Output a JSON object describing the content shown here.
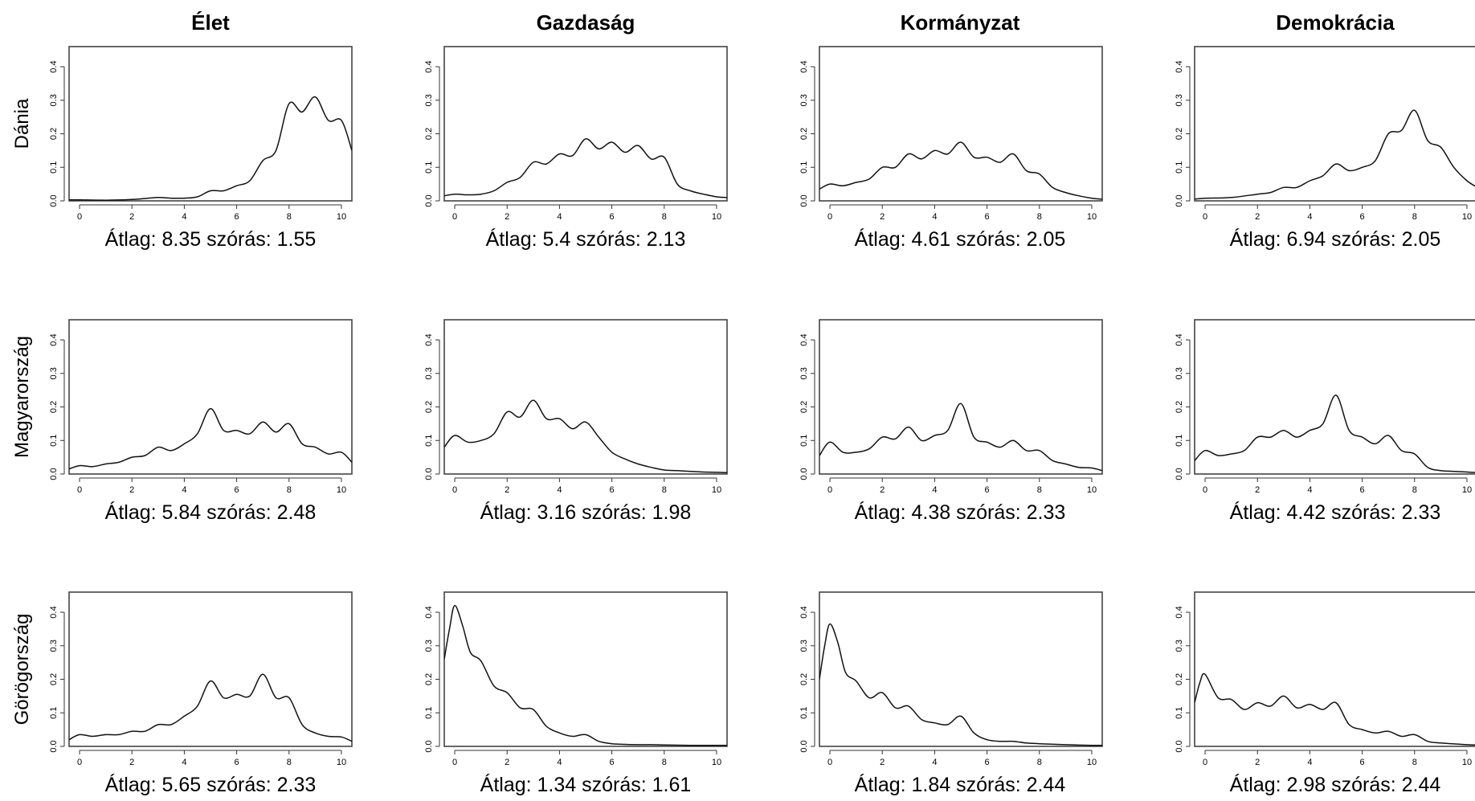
{
  "layout": {
    "columns": [
      "Élet",
      "Gazdaság",
      "Kormányzat",
      "Demokrácia"
    ],
    "rows": [
      "Dánia",
      "Magyarország",
      "Görögország"
    ]
  },
  "chart_data": [
    {
      "type": "line",
      "row": "Dánia",
      "column": "Élet",
      "caption": "Átlag: 8.35 szórás: 1.55",
      "xlim": [
        -0.4,
        10.4
      ],
      "ylim": [
        0,
        0.46
      ],
      "xticks": [
        "0",
        "2",
        "4",
        "6",
        "8",
        "10"
      ],
      "yticks": [
        "0.0",
        "0.1",
        "0.2",
        "0.3",
        "0.4"
      ],
      "x": [
        -0.4,
        0,
        1,
        2,
        2.5,
        3,
        3.5,
        4,
        4.5,
        5,
        5.5,
        6,
        6.5,
        7,
        7.5,
        8,
        8.5,
        9,
        9.5,
        10,
        10.4
      ],
      "y": [
        0.003,
        0.003,
        0.002,
        0.004,
        0.007,
        0.01,
        0.008,
        0.008,
        0.012,
        0.03,
        0.03,
        0.045,
        0.06,
        0.12,
        0.15,
        0.29,
        0.265,
        0.31,
        0.24,
        0.24,
        0.15
      ]
    },
    {
      "type": "line",
      "row": "Dánia",
      "column": "Gazdaság",
      "caption": "Átlag: 5.4 szórás: 2.13",
      "xlim": [
        -0.4,
        10.4
      ],
      "ylim": [
        0,
        0.46
      ],
      "xticks": [
        "0",
        "2",
        "4",
        "6",
        "8",
        "10"
      ],
      "yticks": [
        "0.0",
        "0.1",
        "0.2",
        "0.3",
        "0.4"
      ],
      "x": [
        -0.4,
        0,
        0.5,
        1,
        1.5,
        2,
        2.5,
        3,
        3.5,
        4,
        4.5,
        5,
        5.5,
        6,
        6.5,
        7,
        7.5,
        8,
        8.5,
        9,
        9.5,
        10,
        10.4
      ],
      "y": [
        0.015,
        0.02,
        0.018,
        0.02,
        0.03,
        0.055,
        0.07,
        0.115,
        0.11,
        0.14,
        0.135,
        0.185,
        0.155,
        0.175,
        0.145,
        0.165,
        0.125,
        0.13,
        0.05,
        0.03,
        0.02,
        0.012,
        0.01
      ]
    },
    {
      "type": "line",
      "row": "Dánia",
      "column": "Kormányzat",
      "caption": "Átlag: 4.61 szórás: 2.05",
      "xlim": [
        -0.4,
        10.4
      ],
      "ylim": [
        0,
        0.46
      ],
      "xticks": [
        "0",
        "2",
        "4",
        "6",
        "8",
        "10"
      ],
      "yticks": [
        "0.0",
        "0.1",
        "0.2",
        "0.3",
        "0.4"
      ],
      "x": [
        -0.4,
        0,
        0.5,
        1,
        1.5,
        2,
        2.5,
        3,
        3.5,
        4,
        4.5,
        5,
        5.5,
        6,
        6.5,
        7,
        7.5,
        8,
        8.5,
        9,
        9.5,
        10,
        10.4
      ],
      "y": [
        0.035,
        0.05,
        0.045,
        0.055,
        0.065,
        0.1,
        0.1,
        0.14,
        0.125,
        0.15,
        0.14,
        0.175,
        0.13,
        0.13,
        0.115,
        0.14,
        0.09,
        0.08,
        0.04,
        0.025,
        0.015,
        0.008,
        0.005
      ]
    },
    {
      "type": "line",
      "row": "Dánia",
      "column": "Demokrácia",
      "caption": "Átlag: 6.94 szórás: 2.05",
      "xlim": [
        -0.4,
        10.4
      ],
      "ylim": [
        0,
        0.46
      ],
      "xticks": [
        "0",
        "2",
        "4",
        "6",
        "8",
        "10"
      ],
      "yticks": [
        "0.0",
        "0.1",
        "0.2",
        "0.3",
        "0.4"
      ],
      "x": [
        -0.4,
        0,
        1,
        2,
        2.5,
        3,
        3.5,
        4,
        4.5,
        5,
        5.5,
        6,
        6.5,
        7,
        7.5,
        8,
        8.5,
        9,
        9.5,
        10,
        10.4
      ],
      "y": [
        0.005,
        0.008,
        0.01,
        0.02,
        0.025,
        0.04,
        0.04,
        0.06,
        0.075,
        0.11,
        0.09,
        0.1,
        0.12,
        0.2,
        0.21,
        0.27,
        0.18,
        0.16,
        0.1,
        0.06,
        0.04
      ]
    },
    {
      "type": "line",
      "row": "Magyarország",
      "column": "Élet",
      "caption": "Átlag: 5.84 szórás: 2.48",
      "xlim": [
        -0.4,
        10.4
      ],
      "ylim": [
        0,
        0.46
      ],
      "xticks": [
        "0",
        "2",
        "4",
        "6",
        "8",
        "10"
      ],
      "yticks": [
        "0.0",
        "0.1",
        "0.2",
        "0.3",
        "0.4"
      ],
      "x": [
        -0.4,
        0,
        0.5,
        1,
        1.5,
        2,
        2.5,
        3,
        3.5,
        4,
        4.5,
        5,
        5.5,
        6,
        6.5,
        7,
        7.5,
        8,
        8.5,
        9,
        9.5,
        10,
        10.4
      ],
      "y": [
        0.015,
        0.025,
        0.022,
        0.03,
        0.035,
        0.05,
        0.055,
        0.08,
        0.07,
        0.09,
        0.12,
        0.195,
        0.13,
        0.13,
        0.12,
        0.155,
        0.125,
        0.15,
        0.09,
        0.08,
        0.06,
        0.065,
        0.035
      ]
    },
    {
      "type": "line",
      "row": "Magyarország",
      "column": "Gazdaság",
      "caption": "Átlag: 3.16 szórás: 1.98",
      "xlim": [
        -0.4,
        10.4
      ],
      "ylim": [
        0,
        0.46
      ],
      "xticks": [
        "0",
        "2",
        "4",
        "6",
        "8",
        "10"
      ],
      "yticks": [
        "0.0",
        "0.1",
        "0.2",
        "0.3",
        "0.4"
      ],
      "x": [
        -0.4,
        0,
        0.5,
        1,
        1.5,
        2,
        2.5,
        3,
        3.5,
        4,
        4.5,
        5,
        5.5,
        6,
        6.5,
        7,
        7.5,
        8,
        8.5,
        9,
        9.5,
        10,
        10.4
      ],
      "y": [
        0.08,
        0.115,
        0.095,
        0.1,
        0.12,
        0.185,
        0.17,
        0.22,
        0.165,
        0.165,
        0.135,
        0.155,
        0.11,
        0.065,
        0.045,
        0.03,
        0.02,
        0.012,
        0.01,
        0.008,
        0.006,
        0.005,
        0.004
      ]
    },
    {
      "type": "line",
      "row": "Magyarország",
      "column": "Kormányzat",
      "caption": "Átlag: 4.38 szórás: 2.33",
      "xlim": [
        -0.4,
        10.4
      ],
      "ylim": [
        0,
        0.46
      ],
      "xticks": [
        "0",
        "2",
        "4",
        "6",
        "8",
        "10"
      ],
      "yticks": [
        "0.0",
        "0.1",
        "0.2",
        "0.3",
        "0.4"
      ],
      "x": [
        -0.4,
        0,
        0.5,
        1,
        1.5,
        2,
        2.5,
        3,
        3.5,
        4,
        4.5,
        5,
        5.5,
        6,
        6.5,
        7,
        7.5,
        8,
        8.5,
        9,
        9.5,
        10,
        10.4
      ],
      "y": [
        0.055,
        0.095,
        0.065,
        0.065,
        0.075,
        0.11,
        0.105,
        0.14,
        0.1,
        0.115,
        0.13,
        0.21,
        0.11,
        0.095,
        0.08,
        0.1,
        0.07,
        0.07,
        0.04,
        0.03,
        0.02,
        0.018,
        0.01
      ]
    },
    {
      "type": "line",
      "row": "Magyarország",
      "column": "Demokrácia",
      "caption": "Átlag: 4.42 szórás: 2.33",
      "xlim": [
        -0.4,
        10.4
      ],
      "ylim": [
        0,
        0.46
      ],
      "xticks": [
        "0",
        "2",
        "4",
        "6",
        "8",
        "10"
      ],
      "yticks": [
        "0.0",
        "0.1",
        "0.2",
        "0.3",
        "0.4"
      ],
      "x": [
        -0.4,
        0,
        0.5,
        1,
        1.5,
        2,
        2.5,
        3,
        3.5,
        4,
        4.5,
        5,
        5.5,
        6,
        6.5,
        7,
        7.5,
        8,
        8.5,
        9,
        9.5,
        10,
        10.4
      ],
      "y": [
        0.04,
        0.07,
        0.055,
        0.06,
        0.07,
        0.11,
        0.11,
        0.13,
        0.11,
        0.13,
        0.15,
        0.235,
        0.13,
        0.11,
        0.09,
        0.115,
        0.07,
        0.06,
        0.02,
        0.01,
        0.008,
        0.006,
        0.004
      ]
    },
    {
      "type": "line",
      "row": "Görögország",
      "column": "Élet",
      "caption": "Átlag: 5.65 szórás: 2.33",
      "xlim": [
        -0.4,
        10.4
      ],
      "ylim": [
        0,
        0.46
      ],
      "xticks": [
        "0",
        "2",
        "4",
        "6",
        "8",
        "10"
      ],
      "yticks": [
        "0.0",
        "0.1",
        "0.2",
        "0.3",
        "0.4"
      ],
      "x": [
        -0.4,
        0,
        0.5,
        1,
        1.5,
        2,
        2.5,
        3,
        3.5,
        4,
        4.5,
        5,
        5.5,
        6,
        6.5,
        7,
        7.5,
        8,
        8.5,
        9,
        9.5,
        10,
        10.4
      ],
      "y": [
        0.02,
        0.035,
        0.03,
        0.035,
        0.035,
        0.045,
        0.045,
        0.065,
        0.065,
        0.09,
        0.12,
        0.195,
        0.145,
        0.155,
        0.15,
        0.215,
        0.145,
        0.145,
        0.065,
        0.04,
        0.03,
        0.028,
        0.015
      ]
    },
    {
      "type": "line",
      "row": "Görögország",
      "column": "Gazdaság",
      "caption": "Átlag: 1.34 szórás: 1.61",
      "xlim": [
        -0.4,
        10.4
      ],
      "ylim": [
        0,
        0.46
      ],
      "xticks": [
        "0",
        "2",
        "4",
        "6",
        "8",
        "10"
      ],
      "yticks": [
        "0.0",
        "0.1",
        "0.2",
        "0.3",
        "0.4"
      ],
      "x": [
        -0.4,
        -0.2,
        0,
        0.3,
        0.6,
        1,
        1.5,
        2,
        2.5,
        3,
        3.5,
        4,
        4.5,
        5,
        5.5,
        6,
        6.5,
        7,
        7.5,
        8,
        9,
        10,
        10.4
      ],
      "y": [
        0.26,
        0.35,
        0.42,
        0.36,
        0.28,
        0.255,
        0.18,
        0.16,
        0.115,
        0.11,
        0.06,
        0.04,
        0.03,
        0.035,
        0.015,
        0.008,
        0.006,
        0.005,
        0.005,
        0.004,
        0.003,
        0.003,
        0.003
      ]
    },
    {
      "type": "line",
      "row": "Görögország",
      "column": "Kormányzat",
      "caption": "Átlag: 1.84 szórás: 2.44",
      "xlim": [
        -0.4,
        10.4
      ],
      "ylim": [
        0,
        0.46
      ],
      "xticks": [
        "0",
        "2",
        "4",
        "6",
        "8",
        "10"
      ],
      "yticks": [
        "0.0",
        "0.1",
        "0.2",
        "0.3",
        "0.4"
      ],
      "x": [
        -0.4,
        -0.2,
        0,
        0.3,
        0.6,
        1,
        1.5,
        2,
        2.5,
        3,
        3.5,
        4,
        4.5,
        5,
        5.5,
        6,
        6.5,
        7,
        7.5,
        8,
        9,
        10,
        10.4
      ],
      "y": [
        0.2,
        0.3,
        0.365,
        0.31,
        0.22,
        0.195,
        0.145,
        0.16,
        0.115,
        0.12,
        0.08,
        0.07,
        0.065,
        0.09,
        0.04,
        0.02,
        0.015,
        0.015,
        0.01,
        0.008,
        0.005,
        0.003,
        0.003
      ]
    },
    {
      "type": "line",
      "row": "Görögország",
      "column": "Demokrácia",
      "caption": "Átlag: 2.98 szórás: 2.44",
      "xlim": [
        -0.4,
        10.4
      ],
      "ylim": [
        0,
        0.46
      ],
      "xticks": [
        "0",
        "2",
        "4",
        "6",
        "8",
        "10"
      ],
      "yticks": [
        "0.0",
        "0.1",
        "0.2",
        "0.3",
        "0.4"
      ],
      "x": [
        -0.4,
        -0.2,
        0,
        0.5,
        1,
        1.5,
        2,
        2.5,
        3,
        3.5,
        4,
        4.5,
        5,
        5.5,
        6,
        6.5,
        7,
        7.5,
        8,
        8.5,
        9,
        10,
        10.4
      ],
      "y": [
        0.13,
        0.19,
        0.215,
        0.145,
        0.14,
        0.11,
        0.13,
        0.12,
        0.15,
        0.115,
        0.125,
        0.11,
        0.13,
        0.065,
        0.05,
        0.04,
        0.045,
        0.03,
        0.035,
        0.015,
        0.01,
        0.005,
        0.004
      ]
    }
  ]
}
